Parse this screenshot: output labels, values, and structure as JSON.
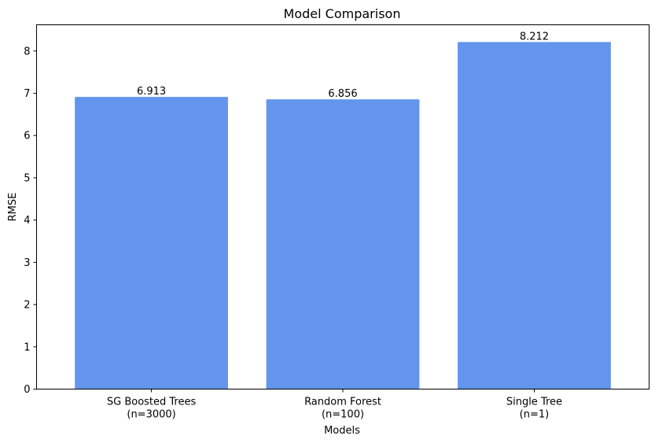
{
  "chart_data": {
    "type": "bar",
    "title": "Model Comparison",
    "xlabel": "Models",
    "ylabel": "RMSE",
    "categories": [
      [
        "SG Boosted Trees",
        "(n=3000)"
      ],
      [
        "Random Forest",
        "(n=100)"
      ],
      [
        "Single Tree",
        "(n=1)"
      ]
    ],
    "values": [
      6.913,
      6.856,
      8.212
    ],
    "data_labels": [
      "6.913",
      "6.856",
      "8.212"
    ],
    "ylim": [
      0,
      8.62
    ],
    "yticks": [
      "0",
      "1",
      "2",
      "3",
      "4",
      "5",
      "6",
      "7",
      "8"
    ],
    "bar_color": "#6495ED",
    "grid": false,
    "legend": "none"
  }
}
